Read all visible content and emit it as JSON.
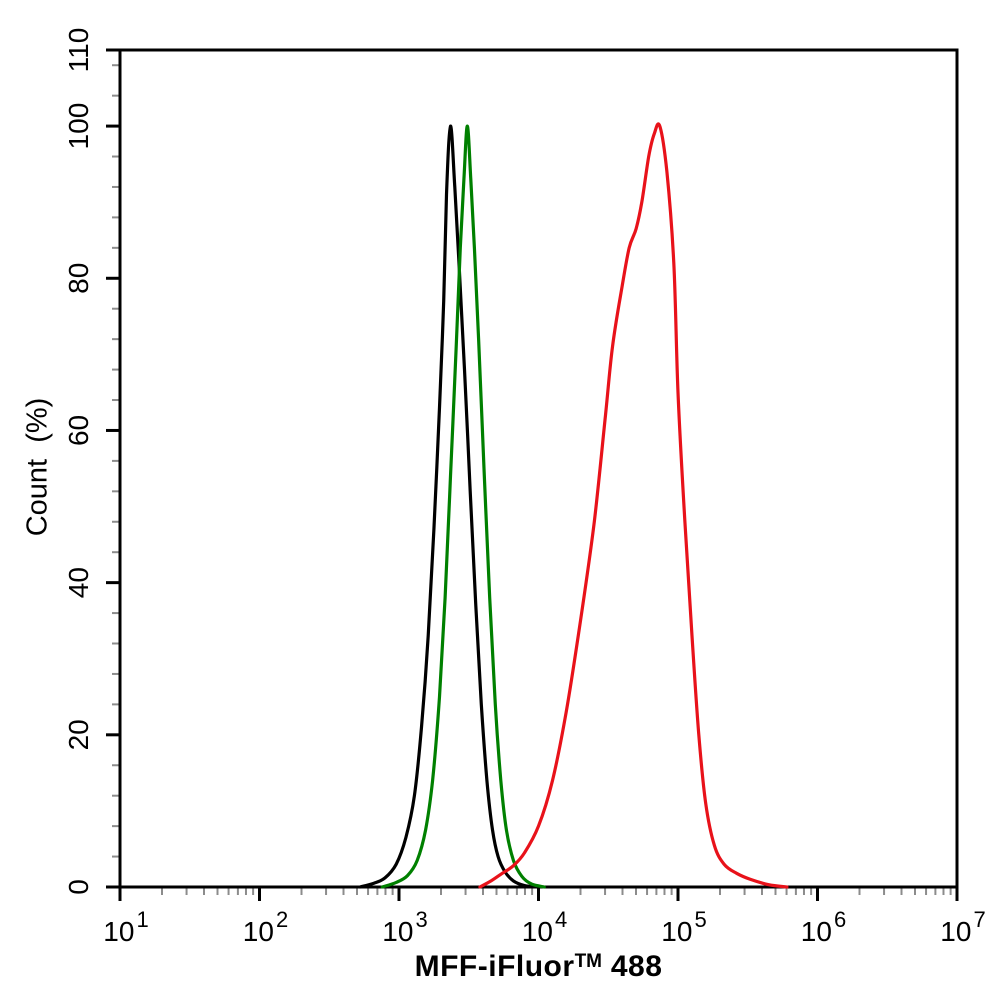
{
  "figure": {
    "background": "#ffffff",
    "axis_color": "#000000",
    "minor_tick_color": "#8c8c8c"
  },
  "chart_data": {
    "type": "line",
    "subtype": "flow-cytometry-histogram",
    "title": "",
    "xlabel": {
      "full": "MFF-iFluor™ 488",
      "pre": "MFF-iFluor",
      "sup": "TM",
      "post": " 488"
    },
    "ylabel": "Count  (%)",
    "x_axis": {
      "scale": "log10",
      "min": 10,
      "max": 10000000,
      "tick_base": "10",
      "tick_exponents": [
        1,
        2,
        3,
        4,
        5,
        6,
        7
      ],
      "minor_tick_multiples": [
        2,
        3,
        4,
        5,
        6,
        7,
        8,
        9
      ]
    },
    "y_axis": {
      "min": 0,
      "max": 110,
      "major_ticks": [
        0,
        20,
        40,
        60,
        80,
        100,
        110
      ],
      "minor_tick_step": 4
    },
    "grid": false,
    "legend": false,
    "series": [
      {
        "name": "black-curve",
        "color": "#000000",
        "points": [
          [
            525,
            0
          ],
          [
            661,
            0.5
          ],
          [
            794,
            1.2
          ],
          [
            955,
            3
          ],
          [
            1120,
            6.5
          ],
          [
            1290,
            12
          ],
          [
            1450,
            21
          ],
          [
            1620,
            33
          ],
          [
            1780,
            47
          ],
          [
            1950,
            63
          ],
          [
            2090,
            77
          ],
          [
            2190,
            91
          ],
          [
            2340,
            100
          ],
          [
            2510,
            92
          ],
          [
            2690,
            82
          ],
          [
            2950,
            68
          ],
          [
            3240,
            52
          ],
          [
            3550,
            37
          ],
          [
            3890,
            24
          ],
          [
            4270,
            14
          ],
          [
            4680,
            7.5
          ],
          [
            5130,
            4
          ],
          [
            5750,
            2
          ],
          [
            6610,
            0.8
          ],
          [
            7940,
            0.2
          ],
          [
            10000,
            0
          ]
        ]
      },
      {
        "name": "green-curve",
        "color": "#008000",
        "points": [
          [
            758,
            0
          ],
          [
            955,
            0.6
          ],
          [
            1150,
            1.5
          ],
          [
            1350,
            3.5
          ],
          [
            1550,
            7.5
          ],
          [
            1740,
            14
          ],
          [
            1950,
            25
          ],
          [
            2140,
            38
          ],
          [
            2340,
            54
          ],
          [
            2570,
            71
          ],
          [
            2750,
            84
          ],
          [
            2920,
            93
          ],
          [
            3090,
            100
          ],
          [
            3270,
            93
          ],
          [
            3470,
            84
          ],
          [
            3720,
            72
          ],
          [
            4070,
            55
          ],
          [
            4470,
            38
          ],
          [
            4900,
            24
          ],
          [
            5370,
            14
          ],
          [
            5890,
            7.5
          ],
          [
            6610,
            3.5
          ],
          [
            7590,
            1.4
          ],
          [
            8910,
            0.4
          ],
          [
            11000,
            0
          ]
        ]
      },
      {
        "name": "red-curve",
        "color": "#e8121a",
        "points": [
          [
            3800,
            0
          ],
          [
            4570,
            0.8
          ],
          [
            5500,
            1.8
          ],
          [
            6610,
            2.8
          ],
          [
            7940,
            4.5
          ],
          [
            10000,
            8
          ],
          [
            12600,
            14
          ],
          [
            15800,
            23
          ],
          [
            20000,
            35
          ],
          [
            25100,
            48
          ],
          [
            30200,
            62
          ],
          [
            33900,
            71
          ],
          [
            39800,
            79
          ],
          [
            44700,
            84
          ],
          [
            50100,
            86.5
          ],
          [
            55000,
            90
          ],
          [
            61700,
            96
          ],
          [
            67600,
            99
          ],
          [
            74100,
            100
          ],
          [
            83200,
            94
          ],
          [
            93300,
            82
          ],
          [
            100000,
            65
          ],
          [
            112000,
            48
          ],
          [
            126000,
            33
          ],
          [
            141000,
            20
          ],
          [
            158000,
            11
          ],
          [
            182000,
            5.5
          ],
          [
            214000,
            3
          ],
          [
            263000,
            1.8
          ],
          [
            331000,
            1
          ],
          [
            447000,
            0.3
          ],
          [
            603000,
            0
          ]
        ]
      }
    ]
  }
}
